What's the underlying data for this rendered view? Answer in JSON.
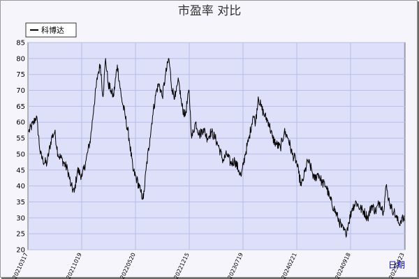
{
  "chart_data": {
    "type": "line",
    "title": "市盈率  对比",
    "xlabel": "日期",
    "ylabel": "",
    "ylim": [
      20,
      85
    ],
    "yticks": [
      20,
      25,
      30,
      35,
      40,
      45,
      50,
      55,
      60,
      65,
      70,
      75,
      80,
      85
    ],
    "xticks": [
      "20210317",
      "20211019",
      "20220520",
      "20221215",
      "20230719",
      "20240221",
      "20240918",
      "20250423"
    ],
    "grid": true,
    "legend_position": "top-left",
    "series": [
      {
        "name": "科博达",
        "color": "#000000",
        "anchors": [
          [
            0,
            57
          ],
          [
            8,
            60
          ],
          [
            12,
            62
          ],
          [
            18,
            50
          ],
          [
            22,
            48
          ],
          [
            28,
            47
          ],
          [
            35,
            55
          ],
          [
            40,
            57
          ],
          [
            45,
            50
          ],
          [
            52,
            48
          ],
          [
            60,
            45
          ],
          [
            65,
            40
          ],
          [
            70,
            38
          ],
          [
            75,
            45
          ],
          [
            82,
            43
          ],
          [
            88,
            48
          ],
          [
            95,
            55
          ],
          [
            100,
            65
          ],
          [
            106,
            75
          ],
          [
            110,
            78
          ],
          [
            114,
            68
          ],
          [
            118,
            80
          ],
          [
            122,
            72
          ],
          [
            126,
            70
          ],
          [
            130,
            68
          ],
          [
            136,
            78
          ],
          [
            142,
            68
          ],
          [
            148,
            62
          ],
          [
            154,
            55
          ],
          [
            160,
            45
          ],
          [
            166,
            42
          ],
          [
            172,
            38
          ],
          [
            176,
            36
          ],
          [
            180,
            45
          ],
          [
            186,
            55
          ],
          [
            190,
            62
          ],
          [
            196,
            70
          ],
          [
            200,
            72
          ],
          [
            205,
            68
          ],
          [
            210,
            75
          ],
          [
            215,
            80
          ],
          [
            220,
            70
          ],
          [
            225,
            68
          ],
          [
            230,
            73
          ],
          [
            235,
            65
          ],
          [
            240,
            62
          ],
          [
            246,
            70
          ],
          [
            250,
            55
          ],
          [
            256,
            60
          ],
          [
            262,
            56
          ],
          [
            268,
            58
          ],
          [
            274,
            55
          ],
          [
            280,
            57
          ],
          [
            286,
            55
          ],
          [
            292,
            52
          ],
          [
            298,
            48
          ],
          [
            304,
            50
          ],
          [
            310,
            47
          ],
          [
            316,
            48
          ],
          [
            322,
            45
          ],
          [
            326,
            43
          ],
          [
            332,
            50
          ],
          [
            338,
            55
          ],
          [
            344,
            62
          ],
          [
            348,
            60
          ],
          [
            352,
            68
          ],
          [
            356,
            65
          ],
          [
            362,
            62
          ],
          [
            368,
            60
          ],
          [
            374,
            55
          ],
          [
            380,
            53
          ],
          [
            386,
            52
          ],
          [
            392,
            57
          ],
          [
            398,
            55
          ],
          [
            404,
            50
          ],
          [
            410,
            48
          ],
          [
            414,
            44
          ],
          [
            418,
            40
          ],
          [
            422,
            43
          ],
          [
            428,
            48
          ],
          [
            434,
            45
          ],
          [
            438,
            42
          ],
          [
            444,
            44
          ],
          [
            450,
            41
          ],
          [
            456,
            40
          ],
          [
            462,
            36
          ],
          [
            468,
            33
          ],
          [
            474,
            30
          ],
          [
            480,
            27
          ],
          [
            486,
            25
          ],
          [
            490,
            28
          ],
          [
            496,
            33
          ],
          [
            502,
            35
          ],
          [
            508,
            33
          ],
          [
            514,
            32
          ],
          [
            520,
            30
          ],
          [
            526,
            34
          ],
          [
            532,
            32
          ],
          [
            538,
            35
          ],
          [
            544,
            32
          ],
          [
            548,
            40
          ],
          [
            552,
            36
          ],
          [
            556,
            33
          ],
          [
            560,
            32
          ],
          [
            564,
            30
          ],
          [
            568,
            28
          ],
          [
            572,
            30
          ],
          [
            576,
            29
          ]
        ]
      }
    ]
  },
  "legend_label": "科博达"
}
